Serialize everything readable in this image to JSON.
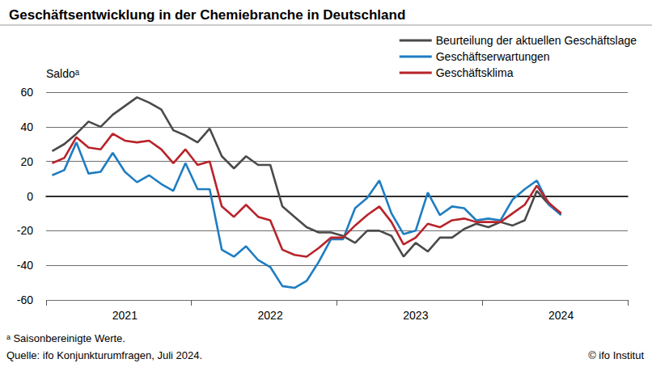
{
  "chart_data": {
    "type": "line",
    "title": "Geschäftsentwicklung in der Chemiebranche in Deutschland",
    "ylabel": "Saldoᵃ",
    "notes": [
      "ᵃ Saisonbereinigte Werte.",
      "Quelle: ifo Konjunkturumfragen, Juli 2024."
    ],
    "copyright": "© ifo Institut",
    "categories": [
      null,
      null,
      null,
      null,
      null,
      null,
      "2021",
      null,
      null,
      null,
      null,
      null,
      null,
      null,
      null,
      null,
      null,
      null,
      "2022",
      null,
      null,
      null,
      null,
      null,
      null,
      null,
      null,
      null,
      null,
      null,
      "2023",
      null,
      null,
      null,
      null,
      null,
      null,
      null,
      null,
      null,
      null,
      null,
      "2024",
      null,
      null,
      null,
      null,
      null
    ],
    "series": [
      {
        "name": "Beurteilung der aktuellen Geschäftslage",
        "color": "#4a4a4a",
        "values": [
          26,
          30,
          36,
          43,
          40,
          47,
          52,
          57,
          54,
          50,
          38,
          35,
          31,
          39,
          23,
          16,
          23,
          18,
          18,
          -6,
          -12,
          -18,
          -21,
          -21,
          -23,
          -27,
          -20,
          -20,
          -23,
          -35,
          -27,
          -32,
          -24,
          -24,
          -19,
          -16,
          -18,
          -15,
          -17,
          -14,
          3,
          -5,
          -10,
          null,
          null,
          null,
          null,
          null
        ]
      },
      {
        "name": "Geschäftserwartungen",
        "color": "#1f7dc1",
        "values": [
          12,
          15,
          31,
          13,
          14,
          25,
          14,
          8,
          12,
          7,
          3,
          19,
          4,
          4,
          -31,
          -35,
          -29,
          -37,
          -41,
          -52,
          -53,
          -49,
          -38,
          -25,
          -25,
          -7,
          -1,
          9,
          -10,
          -22,
          -20,
          2,
          -11,
          -6,
          -7,
          -14,
          -13,
          -14,
          -2,
          4,
          9,
          -5,
          -11,
          null,
          null,
          null,
          null,
          null
        ]
      },
      {
        "name": "Geschäftsklima",
        "color": "#b8232b",
        "values": [
          19,
          22,
          34,
          28,
          27,
          36,
          32,
          31,
          32,
          27,
          19,
          27,
          18,
          20,
          -6,
          -12,
          -5,
          -12,
          -14,
          -31,
          -34,
          -35,
          -30,
          -24,
          -24,
          -17,
          -11,
          -6,
          -15,
          -28,
          -24,
          -16,
          -18,
          -14,
          -13,
          -15,
          -15,
          -15,
          -10,
          -5,
          6,
          -4,
          -10,
          null,
          null,
          null,
          null,
          null
        ]
      }
    ],
    "ylim": [
      -60,
      60
    ],
    "yticks": [
      -60,
      -40,
      -20,
      0,
      20,
      40,
      60
    ],
    "grid": true,
    "legend": "top-right"
  }
}
